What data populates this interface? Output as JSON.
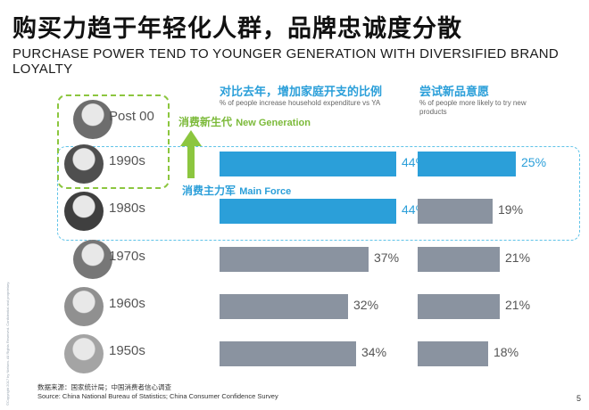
{
  "title_cn": "购买力趋于年轻化人群，品牌忠诚度分散",
  "title_en": "PURCHASE POWER TEND TO YOUNGER GENERATION WITH DIVERSIFIED BRAND LOYALTY",
  "colors": {
    "highlight_bar": "#2b9fd9",
    "normal_bar": "#8a93a0",
    "green": "#8cc63f",
    "accent": "#2b9fd9"
  },
  "annotations": {
    "new_generation_cn": "消费新生代",
    "new_generation_en": "New Generation",
    "main_force_cn": "消费主力军",
    "main_force_en": "Main Force"
  },
  "icons": [
    "arrow-up-icon"
  ],
  "source": {
    "line1": "数据来源：国家统计局；中国消费者信心调查",
    "line2": "Source: China National Bureau of Statistics; China Consumer Confidence Survey"
  },
  "page_number": "5",
  "side_credit": "©Copyright 2017 by Nielsen. All Rights Reserved. Confidential and proprietary.",
  "chart_data": [
    {
      "type": "bar",
      "title": "对比去年，增加家庭开支的比例",
      "subtitle": "% of people increase household expenditure vs YA",
      "categories": [
        "Post 00",
        "1990s",
        "1980s",
        "1970s",
        "1960s",
        "1950s"
      ],
      "values": [
        null,
        44,
        44,
        37,
        32,
        34
      ],
      "value_labels": [
        "",
        "44%",
        "44%",
        "37%",
        "32%",
        "34%"
      ],
      "highlighted": [
        "1990s",
        "1980s"
      ],
      "unit": "%"
    },
    {
      "type": "bar",
      "title": "尝试新品意愿",
      "subtitle": "% of people more likely to try new products",
      "categories": [
        "Post 00",
        "1990s",
        "1980s",
        "1970s",
        "1960s",
        "1950s"
      ],
      "values": [
        null,
        25,
        19,
        21,
        21,
        18
      ],
      "value_labels": [
        "",
        "25%",
        "19%",
        "21%",
        "21%",
        "18%"
      ],
      "highlighted": [
        "1990s"
      ],
      "unit": "%"
    }
  ]
}
